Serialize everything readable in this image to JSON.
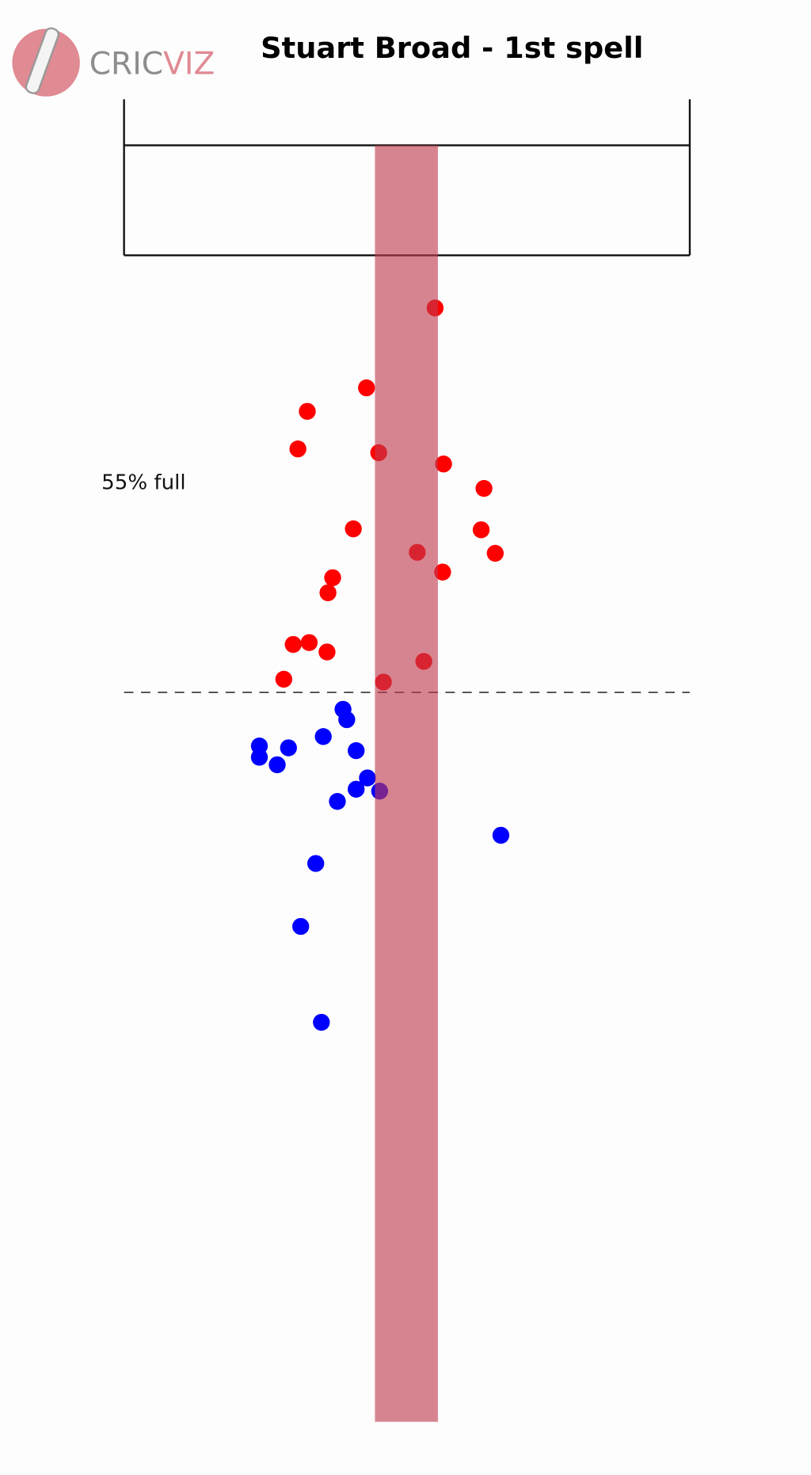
{
  "logo": [
    "CRIC",
    "VIZ"
  ],
  "chart_data": {
    "type": "scatter",
    "title": "Stuart Broad - 1st spell",
    "annotation": "55% full",
    "xlim": [
      0,
      863
    ],
    "ylim": [
      1568,
      0
    ],
    "series": [
      {
        "color": "#ff0000",
        "x": [
          463,
          390,
          327,
          317,
          403,
          472,
          515,
          376,
          512,
          444,
          527,
          471,
          354,
          349,
          312,
          329,
          348,
          451,
          302,
          408
        ],
        "values": [
          327,
          412,
          437,
          477,
          481,
          493,
          519,
          562,
          563,
          587,
          588,
          608,
          614,
          630,
          685,
          683,
          693,
          703,
          722,
          725
        ]
      },
      {
        "color": "#0000ff",
        "x": [
          365,
          369,
          276,
          307,
          276,
          344,
          379,
          295,
          391,
          379,
          404,
          359,
          533,
          336,
          320,
          342
        ],
        "values": [
          754,
          765,
          793,
          795,
          805,
          783,
          798,
          813,
          827,
          839,
          841,
          852,
          888,
          918,
          985,
          1087
        ]
      }
    ]
  }
}
